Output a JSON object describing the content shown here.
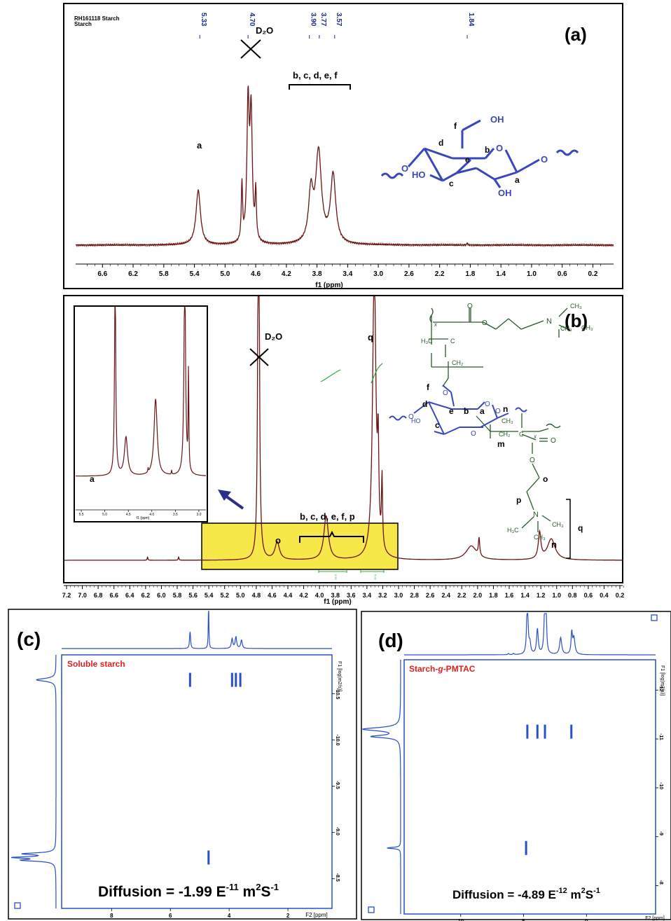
{
  "figure": {
    "panels": [
      "(a)",
      "(b)",
      "(c)",
      "(d)"
    ]
  },
  "colors": {
    "spectrum": "#6a1414",
    "structure_blue": "#3848b8",
    "structure_green": "#2a5a2a",
    "label_blue": "#1a2a8a",
    "highlight": "#f7e84a",
    "integral_green": "#33aa44",
    "red_text": "#e02020",
    "dosy_blue": "#2850c8"
  },
  "chart_data": [
    {
      "panel": "(a)",
      "type": "line",
      "header_lines": [
        "RH161118 Starch",
        "Starch"
      ],
      "xlabel": "f1 (ppm)",
      "xlim": [
        6.95,
        -0.07
      ],
      "reversed_axis": true,
      "xticks": [
        "6.6",
        "6.2",
        "5.8",
        "5.4",
        "5.0",
        "4.6",
        "4.2",
        "3.8",
        "3.4",
        "3.0",
        "2.6",
        "2.2",
        "1.8",
        "1.4",
        "1.0",
        "0.6",
        "0.2"
      ],
      "peak_labels": [
        "5.33",
        "4.70",
        "3.90",
        "3.77",
        "3.57",
        "1.84"
      ],
      "series": [
        {
          "peaks": [
            {
              "ppm": 5.35,
              "height": 0.4,
              "width": 0.035
            },
            {
              "ppm": 4.7,
              "height": 1.0,
              "width": 0.018
            },
            {
              "ppm": 4.66,
              "height": 0.92,
              "width": 0.018
            },
            {
              "ppm": 4.78,
              "height": 0.42,
              "width": 0.01
            },
            {
              "ppm": 4.6,
              "height": 0.35,
              "width": 0.01
            },
            {
              "ppm": 3.88,
              "height": 0.36,
              "width": 0.035
            },
            {
              "ppm": 3.78,
              "height": 0.66,
              "width": 0.045
            },
            {
              "ppm": 3.59,
              "height": 0.5,
              "width": 0.04
            },
            {
              "ppm": 1.84,
              "height": 0.02,
              "width": 0.005
            }
          ]
        }
      ],
      "annotations": {
        "solvent": "D₂O",
        "peak_a": "a",
        "group": "b, c, d, e, f"
      },
      "structure": {
        "atoms": [
          "OH",
          "O",
          "O",
          "O",
          "HO",
          "OH"
        ],
        "letters": [
          "f",
          "d",
          "e",
          "b",
          "c",
          "a"
        ]
      }
    },
    {
      "panel": "(b)",
      "type": "line",
      "xlabel": "f1 (ppm)",
      "xlim": [
        7.3,
        0.1
      ],
      "reversed_axis": true,
      "xticks": [
        "7.2",
        "7.0",
        "6.8",
        "6.6",
        "6.4",
        "6.2",
        "6.0",
        "5.8",
        "5.6",
        "5.4",
        "5.2",
        "5.0",
        "4.8",
        "4.6",
        "4.4",
        "4.2",
        "4.0",
        "3.8",
        "3.6",
        "3.4",
        "3.2",
        "3.0",
        "2.8",
        "2.6",
        "2.4",
        "2.2",
        "2.0",
        "1.8",
        "1.6",
        "1.4",
        "1.2",
        "1.0",
        "0.8",
        "0.6",
        "0.4",
        "0.2"
      ],
      "integral_values": [
        "0.50",
        "5.00"
      ],
      "series": [
        {
          "peaks": [
            {
              "ppm": 4.79,
              "height": 3.0,
              "width": 0.01
            },
            {
              "ppm": 4.55,
              "height": 0.1,
              "width": 0.035
            },
            {
              "ppm": 3.92,
              "height": 0.25,
              "width": 0.035
            },
            {
              "ppm": 3.3,
              "height": 1.7,
              "width": 0.025
            },
            {
              "ppm": 3.25,
              "height": 0.5,
              "width": 0.01
            },
            {
              "ppm": 3.2,
              "height": 0.4,
              "width": 0.008
            },
            {
              "ppm": 6.22,
              "height": 0.02,
              "width": 0.005
            },
            {
              "ppm": 5.82,
              "height": 0.02,
              "width": 0.005
            },
            {
              "ppm": 2.05,
              "height": 0.08,
              "width": 0.08
            },
            {
              "ppm": 1.95,
              "height": 0.1,
              "width": 0.01
            },
            {
              "ppm": 1.17,
              "height": 0.15,
              "width": 0.02
            },
            {
              "ppm": 1.02,
              "height": 0.12,
              "width": 0.06
            }
          ]
        }
      ],
      "annotations": {
        "solvent": "D₂O",
        "group": "b, c, d, e, f, p",
        "peak_o": "o",
        "peak_q": "q",
        "peak_n": "n"
      },
      "inset": {
        "xticks": [
          "5.5",
          "5.0",
          "4.5",
          "4.0",
          "3.5",
          "3.0"
        ],
        "xlabel": "f1 (ppm)",
        "label_a": "a",
        "peaks": [
          {
            "ppm": 4.78,
            "height": 3.0,
            "width": 0.015
          },
          {
            "ppm": 4.55,
            "height": 0.55,
            "width": 0.04
          },
          {
            "ppm": 3.92,
            "height": 1.1,
            "width": 0.04
          },
          {
            "ppm": 3.3,
            "height": 3.0,
            "width": 0.02
          },
          {
            "ppm": 3.22,
            "height": 1.5,
            "width": 0.008
          },
          {
            "ppm": 4.08,
            "height": 0.06,
            "width": 0.006
          },
          {
            "ppm": 3.58,
            "height": 0.06,
            "width": 0.006
          }
        ]
      },
      "structure": {
        "blue_letters": [
          "f",
          "d",
          "e",
          "b",
          "a",
          "c"
        ],
        "blue_atoms": [
          "O",
          "O",
          "O",
          "HO",
          "O"
        ],
        "green_letters": [
          "x",
          "x",
          "m",
          "o",
          "p",
          "q",
          "n"
        ],
        "green_atoms": [
          "CH₃",
          "CH₃",
          "CH₃",
          "H₃C",
          "C",
          "CH₂",
          "O",
          "O",
          "N",
          "CH₃",
          "CH₂",
          "C",
          "O",
          "O",
          "N",
          "CH₃",
          "CH₃",
          "H₃C",
          "O"
        ]
      }
    },
    {
      "panel": "(c)",
      "type": "heatmap",
      "label": "Soluble starch",
      "xlabel": "F2 [ppm]",
      "xticks": [
        "8",
        "6",
        "4",
        "2"
      ],
      "ylabel": "F1 [log(m2/s)]",
      "yticks": [
        "-10.5",
        "-10.0",
        "-9.5",
        "-9.0",
        "-8.5"
      ],
      "diffusion_text": "Diffusion = -1.99 E",
      "diffusion_exp": "-11",
      "diffusion_unit": " m",
      "unit_exp1": "2",
      "unit_mid": "S",
      "unit_exp2": "-1",
      "cross_peaks": [
        {
          "ppm": 5.33,
          "logD": -10.65
        },
        {
          "ppm": 3.9,
          "logD": -10.65
        },
        {
          "ppm": 3.77,
          "logD": -10.65
        },
        {
          "ppm": 3.62,
          "logD": -10.65
        },
        {
          "ppm": 4.7,
          "logD": -8.73
        }
      ]
    },
    {
      "panel": "(d)",
      "type": "heatmap",
      "label_prefix": "Starch-",
      "label_g": "g",
      "label_suffix": "-PMTAC",
      "xlabel": "F2 [ppm]",
      "xticks": [
        "10",
        "5",
        "0"
      ],
      "ylabel": "F1 [log(m2/s)]",
      "yticks": [
        "-12",
        "-11",
        "-10",
        "-9",
        "-8"
      ],
      "diffusion_text": "Diffusion = -4.89 E",
      "diffusion_exp": "-12",
      "diffusion_unit": " m",
      "unit_exp1": "2",
      "unit_mid": "S",
      "unit_exp2": "-1",
      "cross_peaks": [
        {
          "ppm": 4.7,
          "logD": -11.15
        },
        {
          "ppm": 3.9,
          "logD": -11.15
        },
        {
          "ppm": 3.3,
          "logD": -11.15
        },
        {
          "ppm": 1.2,
          "logD": -11.15
        },
        {
          "ppm": 4.8,
          "logD": -8.77
        }
      ]
    }
  ]
}
